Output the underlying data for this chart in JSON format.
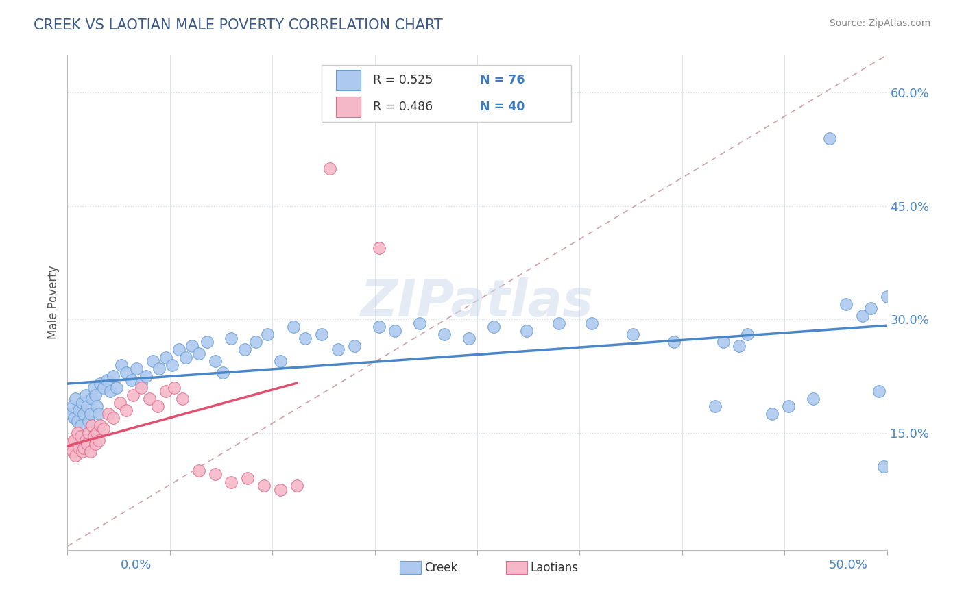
{
  "title": "CREEK VS LAOTIAN MALE POVERTY CORRELATION CHART",
  "source_text": "Source: ZipAtlas.com",
  "ylabel": "Male Poverty",
  "xlim": [
    0.0,
    0.5
  ],
  "ylim": [
    -0.005,
    0.65
  ],
  "yticks": [
    0.0,
    0.15,
    0.3,
    0.45,
    0.6
  ],
  "ytick_labels": [
    "",
    "15.0%",
    "30.0%",
    "45.0%",
    "60.0%"
  ],
  "xticks": [
    0.0,
    0.0625,
    0.125,
    0.1875,
    0.25,
    0.3125,
    0.375,
    0.4375,
    0.5
  ],
  "creek_R": 0.525,
  "creek_N": 76,
  "laotian_R": 0.486,
  "laotian_N": 40,
  "creek_color": "#aec9ef",
  "creek_edge_color": "#6aa0d4",
  "creek_line_color": "#4a86c8",
  "laotian_color": "#f5b8c8",
  "laotian_edge_color": "#e07090",
  "laotian_line_color": "#e05070",
  "ref_line_color": "#d0a0a8",
  "background_color": "#ffffff",
  "title_color": "#3a5a8a",
  "source_color": "#888888",
  "legend_text_color": "#333333",
  "legend_val_color": "#3a7abf",
  "axis_label_color": "#4a86c8",
  "grid_color": "#d8dde8",
  "creek_x": [
    0.002,
    0.003,
    0.004,
    0.005,
    0.006,
    0.007,
    0.008,
    0.009,
    0.01,
    0.011,
    0.012,
    0.013,
    0.014,
    0.015,
    0.016,
    0.017,
    0.018,
    0.019,
    0.02,
    0.022,
    0.024,
    0.026,
    0.028,
    0.03,
    0.033,
    0.036,
    0.039,
    0.042,
    0.045,
    0.048,
    0.052,
    0.056,
    0.06,
    0.064,
    0.068,
    0.072,
    0.076,
    0.08,
    0.085,
    0.09,
    0.095,
    0.1,
    0.108,
    0.115,
    0.122,
    0.13,
    0.138,
    0.145,
    0.155,
    0.165,
    0.175,
    0.19,
    0.2,
    0.215,
    0.23,
    0.245,
    0.26,
    0.28,
    0.3,
    0.32,
    0.345,
    0.37,
    0.395,
    0.4,
    0.41,
    0.415,
    0.43,
    0.44,
    0.455,
    0.465,
    0.475,
    0.485,
    0.49,
    0.495,
    0.498,
    0.5
  ],
  "creek_y": [
    0.175,
    0.185,
    0.17,
    0.195,
    0.165,
    0.18,
    0.16,
    0.19,
    0.175,
    0.2,
    0.185,
    0.165,
    0.175,
    0.195,
    0.21,
    0.2,
    0.185,
    0.175,
    0.215,
    0.21,
    0.22,
    0.205,
    0.225,
    0.21,
    0.24,
    0.23,
    0.22,
    0.235,
    0.215,
    0.225,
    0.245,
    0.235,
    0.25,
    0.24,
    0.26,
    0.25,
    0.265,
    0.255,
    0.27,
    0.245,
    0.23,
    0.275,
    0.26,
    0.27,
    0.28,
    0.245,
    0.29,
    0.275,
    0.28,
    0.26,
    0.265,
    0.29,
    0.285,
    0.295,
    0.28,
    0.275,
    0.29,
    0.285,
    0.295,
    0.295,
    0.28,
    0.27,
    0.185,
    0.27,
    0.265,
    0.28,
    0.175,
    0.185,
    0.195,
    0.54,
    0.32,
    0.305,
    0.315,
    0.205,
    0.105,
    0.33
  ],
  "laotian_x": [
    0.002,
    0.003,
    0.004,
    0.005,
    0.006,
    0.007,
    0.008,
    0.009,
    0.01,
    0.011,
    0.012,
    0.013,
    0.014,
    0.015,
    0.016,
    0.017,
    0.018,
    0.019,
    0.02,
    0.022,
    0.025,
    0.028,
    0.032,
    0.036,
    0.04,
    0.045,
    0.05,
    0.055,
    0.06,
    0.065,
    0.07,
    0.08,
    0.09,
    0.1,
    0.11,
    0.12,
    0.13,
    0.14,
    0.16,
    0.19
  ],
  "laotian_y": [
    0.135,
    0.125,
    0.14,
    0.12,
    0.15,
    0.13,
    0.145,
    0.125,
    0.13,
    0.14,
    0.135,
    0.15,
    0.125,
    0.16,
    0.145,
    0.135,
    0.15,
    0.14,
    0.16,
    0.155,
    0.175,
    0.17,
    0.19,
    0.18,
    0.2,
    0.21,
    0.195,
    0.185,
    0.205,
    0.21,
    0.195,
    0.1,
    0.095,
    0.085,
    0.09,
    0.08,
    0.075,
    0.08,
    0.5,
    0.395
  ]
}
